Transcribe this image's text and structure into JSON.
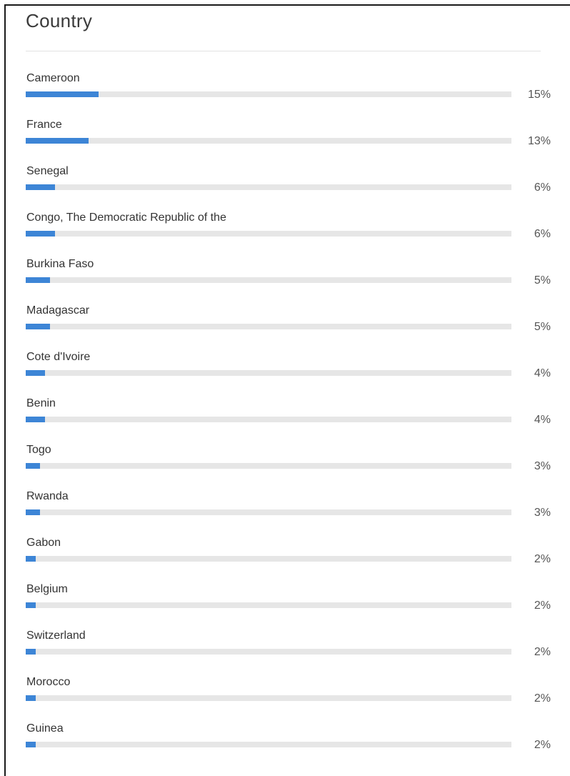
{
  "panel": {
    "title": "Country",
    "colors": {
      "bar": "#3d85d6",
      "track": "#e6e6e6",
      "text": "#333333"
    }
  },
  "chart_data": {
    "type": "bar",
    "orientation": "horizontal",
    "title": "Country",
    "xlabel": "",
    "ylabel": "",
    "xlim": [
      0,
      100
    ],
    "categories": [
      "Cameroon",
      "France",
      "Senegal",
      "Congo, The Democratic Republic of the",
      "Burkina Faso",
      "Madagascar",
      "Cote d'Ivoire",
      "Benin",
      "Togo",
      "Rwanda",
      "Gabon",
      "Belgium",
      "Switzerland",
      "Morocco",
      "Guinea"
    ],
    "values": [
      15,
      13,
      6,
      6,
      5,
      5,
      4,
      4,
      3,
      3,
      2,
      2,
      2,
      2,
      2
    ],
    "value_labels": [
      "15%",
      "13%",
      "6%",
      "6%",
      "5%",
      "5%",
      "4%",
      "4%",
      "3%",
      "3%",
      "2%",
      "2%",
      "2%",
      "2%",
      "2%"
    ],
    "grid": false
  }
}
